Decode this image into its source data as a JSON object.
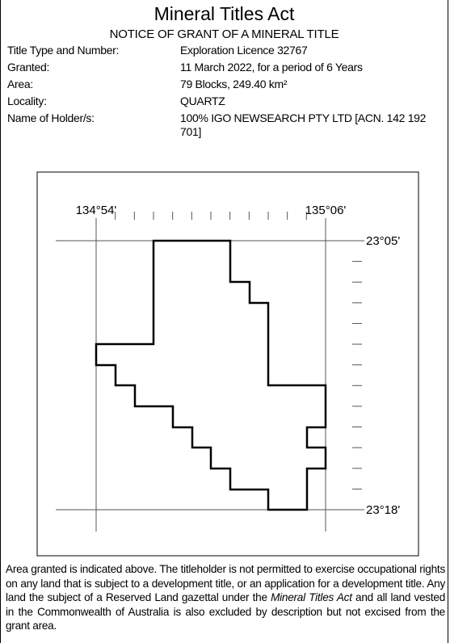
{
  "header": {
    "title": "Mineral Titles Act",
    "subtitle": "NOTICE OF GRANT OF A  MINERAL TITLE"
  },
  "fields": [
    {
      "label": "Title Type and Number:",
      "value": "Exploration Licence 32767"
    },
    {
      "label": "Granted:",
      "value": "11 March 2022, for a period of 6 Years"
    },
    {
      "label": "Area:",
      "value": "79 Blocks, 249.40 km²"
    },
    {
      "label": "Locality:",
      "value": "QUARTZ"
    },
    {
      "label": "Name of Holder/s:",
      "value": "100% IGO NEWSEARCH PTY LTD [ACN. 142 192 701]"
    }
  ],
  "map": {
    "lon_left": "134°54'",
    "lon_right": "135°06'",
    "lat_top": "23°05'",
    "lat_bottom": "23°18'"
  },
  "footer": {
    "text_before": "Area granted is indicated above. The titleholder is not permitted to exercise occupational rights on any land that is subject to a development title, or an application for a development title. Any land the subject of a Reserved Land gazettal under the ",
    "italic": "Mineral Titles Act",
    "text_after": " and all land vested in the Commonwealth of Australia is also excluded by description but not excised from the grant area."
  }
}
